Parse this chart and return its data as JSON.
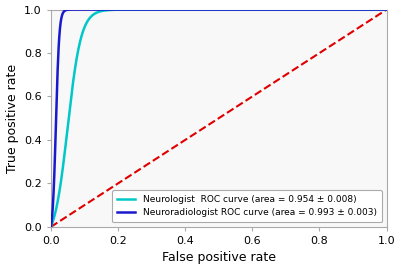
{
  "title": "",
  "xlabel": "False positive rate",
  "ylabel": "True positive rate",
  "xlim": [
    0.0,
    1.0
  ],
  "ylim": [
    0.0,
    1.0
  ],
  "xticks": [
    0.0,
    0.2,
    0.4,
    0.6,
    0.8,
    1.0
  ],
  "yticks": [
    0.0,
    0.2,
    0.4,
    0.6,
    0.8,
    1.0
  ],
  "neurologist_color": "#00c8c8",
  "neuroradiologist_color": "#1a1acd",
  "diagonal_color": "#e00000",
  "neurologist_label": "Neurologist  ROC curve (area = 0.954 ± 0.008)",
  "neuroradiologist_label": "Neuroradiologist ROC curve (area = 0.993 ± 0.003)",
  "legend_loc": "lower right",
  "plot_bg_color": "#f8f8f8",
  "fig_bg_color": "#ffffff",
  "linewidth": 1.8,
  "fontsize": 9,
  "tick_fontsize": 8,
  "legend_fontsize": 6.5
}
